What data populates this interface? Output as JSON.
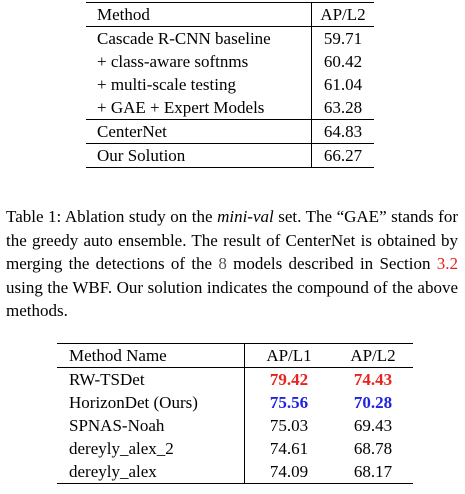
{
  "table1": {
    "headers": [
      "Method",
      "AP/L2"
    ],
    "rows": [
      {
        "method": "Cascade R-CNN baseline",
        "value": "59.71"
      },
      {
        "method": "+ class-aware softnms",
        "value": "60.42"
      },
      {
        "method": "+ multi-scale testing",
        "value": "61.04"
      },
      {
        "method": "+ GAE + Expert Models",
        "value": "63.28"
      },
      {
        "method": "CenterNet",
        "value": "64.83"
      },
      {
        "method": "Our Solution",
        "value": "66.27"
      }
    ]
  },
  "caption": {
    "label": "Table 1:",
    "text_a": " Ablation study on the ",
    "italic": "mini-val",
    "text_b": " set. The “GAE” stands for the greedy auto ensemble. The result of CenterNet is obtained by merging the detections of the ",
    "number": "8",
    "text_c": " models described in Section ",
    "section_ref": "3.2",
    "text_d": " using the WBF. Our solution indicates the compound of the above methods."
  },
  "table2": {
    "headers": [
      "Method Name",
      "AP/L1",
      "AP/L2"
    ],
    "rows": [
      {
        "name": "RW-TSDet",
        "ap1": "79.42",
        "ap2": "74.43"
      },
      {
        "name": "HorizonDet (Ours)",
        "ap1": "75.56",
        "ap2": "70.28"
      },
      {
        "name": "SPNAS-Noah",
        "ap1": "75.03",
        "ap2": "69.43"
      },
      {
        "name": "dereyly_alex_2",
        "ap1": "74.61",
        "ap2": "68.78"
      },
      {
        "name": "dereyly_alex",
        "ap1": "74.09",
        "ap2": "68.17"
      }
    ]
  },
  "colors": {
    "best": "#e8231f",
    "second": "#1f24e0",
    "reference_link": "#e8231f"
  }
}
